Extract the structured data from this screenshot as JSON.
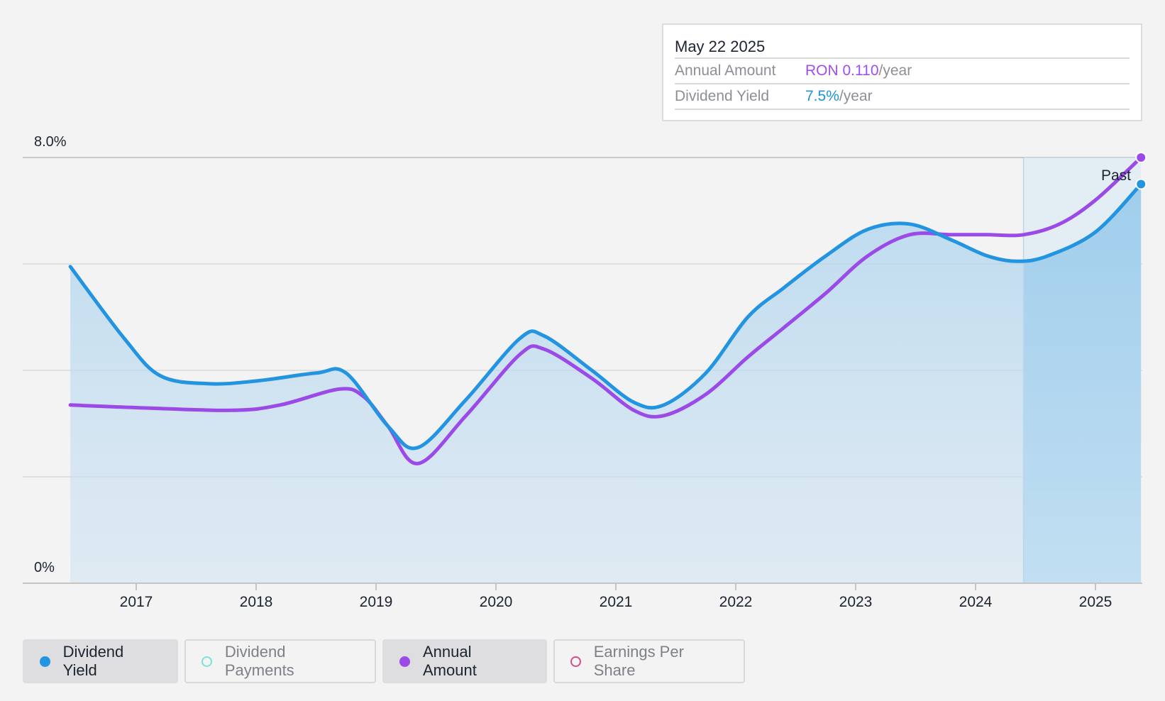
{
  "tooltip": {
    "date": "May 22 2025",
    "rows": [
      {
        "label": "Annual Amount",
        "value": "RON 0.110",
        "unit": "/year"
      },
      {
        "label": "Dividend Yield",
        "value": "7.5%",
        "unit": "/year"
      }
    ]
  },
  "legend": [
    {
      "label": "Dividend Yield",
      "active": true,
      "color": "#2394e0",
      "filled": true
    },
    {
      "label": "Dividend Payments",
      "active": false,
      "color": "#7fe0d8",
      "filled": false
    },
    {
      "label": "Annual Amount",
      "active": true,
      "color": "#9b4ae8",
      "filled": true
    },
    {
      "label": "Earnings Per Share",
      "active": false,
      "color": "#d0508a",
      "filled": false
    }
  ],
  "colors": {
    "yield_line": "#2394e0",
    "amount_line": "#9b4ae8",
    "area_fill": "#a9d2ee",
    "background": "#f3f3f3"
  },
  "chart_data": {
    "type": "line",
    "title": "",
    "xlabel": "",
    "ylabel": "",
    "ylim": [
      0,
      8
    ],
    "y_tick_labels": [
      "0%",
      "8.0%"
    ],
    "x_tick_labels": [
      "2017",
      "2018",
      "2019",
      "2020",
      "2021",
      "2022",
      "2023",
      "2024",
      "2025"
    ],
    "xlim": [
      2016.25,
      2025.4
    ],
    "grid": true,
    "past_label": "Past",
    "past_region_start": 2024.4,
    "series": [
      {
        "name": "Dividend Yield",
        "unit": "%",
        "x": [
          2016.45,
          2016.9,
          2017.2,
          2017.6,
          2018.0,
          2018.5,
          2018.75,
          2019.1,
          2019.35,
          2019.75,
          2020.2,
          2020.4,
          2020.8,
          2021.15,
          2021.4,
          2021.75,
          2022.1,
          2022.4,
          2022.75,
          2023.1,
          2023.45,
          2023.8,
          2024.1,
          2024.35,
          2024.6,
          2025.0,
          2025.38
        ],
        "y": [
          5.95,
          4.6,
          3.9,
          3.75,
          3.8,
          3.95,
          3.95,
          2.95,
          2.55,
          3.45,
          4.6,
          4.65,
          4.0,
          3.4,
          3.35,
          3.95,
          5.0,
          5.55,
          6.15,
          6.65,
          6.75,
          6.45,
          6.15,
          6.05,
          6.15,
          6.6,
          7.5
        ]
      },
      {
        "name": "Annual Amount",
        "unit": "RON",
        "x": [
          2016.45,
          2017.0,
          2017.8,
          2018.2,
          2018.7,
          2018.9,
          2019.1,
          2019.35,
          2019.75,
          2020.2,
          2020.4,
          2020.8,
          2021.15,
          2021.4,
          2021.75,
          2022.1,
          2022.4,
          2022.75,
          2023.1,
          2023.45,
          2023.8,
          2024.1,
          2024.4,
          2024.7,
          2025.0,
          2025.38
        ],
        "y": [
          3.35,
          3.3,
          3.25,
          3.35,
          3.65,
          3.5,
          2.95,
          2.25,
          3.15,
          4.3,
          4.4,
          3.85,
          3.25,
          3.15,
          3.55,
          4.25,
          4.8,
          5.45,
          6.15,
          6.55,
          6.55,
          6.55,
          6.55,
          6.75,
          7.2,
          8.0
        ]
      }
    ]
  }
}
